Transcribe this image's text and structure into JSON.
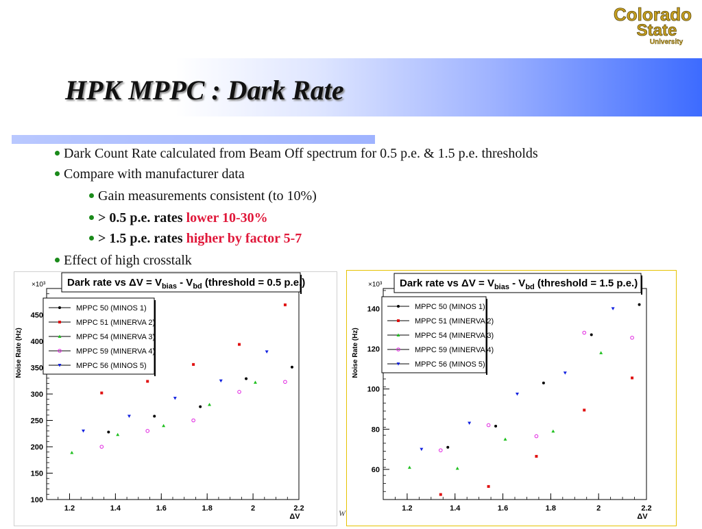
{
  "slide": {
    "title": "HPK MPPC : Dark Rate",
    "logo": {
      "line1": "Colorado",
      "line2": "State",
      "line3": "University"
    },
    "bullets": [
      {
        "level": 1,
        "parts": [
          {
            "text": "Dark Count Rate calculated from Beam Off spectrum for 0.5 p.e. & 1.5 p.e. thresholds"
          }
        ]
      },
      {
        "level": 1,
        "parts": [
          {
            "text": "Compare with manufacturer data"
          }
        ]
      },
      {
        "level": 2,
        "parts": [
          {
            "text": "Gain measurements consistent (to 10%)"
          }
        ]
      },
      {
        "level": 2,
        "parts": [
          {
            "text": "> 0.5 p.e. rates ",
            "bold": true
          },
          {
            "text": "lower 10-30%",
            "bold": true,
            "red": true
          }
        ]
      },
      {
        "level": 2,
        "parts": [
          {
            "text": "> 1.5 p.e. rates ",
            "bold": true
          },
          {
            "text": "higher by factor 5-7",
            "bold": true,
            "red": true
          }
        ]
      },
      {
        "level": 1,
        "parts": [
          {
            "text": "Effect of high crosstalk"
          }
        ]
      }
    ],
    "footer_fragment": "W",
    "colors": {
      "bullet_dot": "#1a8a1a",
      "highlight": "#e0183a",
      "title_gradient_end": "#3d6bff"
    }
  },
  "chart_data": [
    {
      "type": "scatter",
      "title_parts": [
        "Dark rate vs ΔV = V",
        "bias",
        " - V",
        "bd",
        " (threshold = 0.5 p.e.)"
      ],
      "xlabel": "ΔV",
      "ylabel": "Noise Rate (Hz)",
      "y_multiplier": "×10³",
      "xlim": [
        1.1,
        2.2
      ],
      "ylim": [
        100,
        500
      ],
      "xticks": [
        1.2,
        1.4,
        1.6,
        1.8,
        2,
        2.2
      ],
      "xtick_labels": [
        "1.2",
        "1.4",
        "1.6",
        "1.8",
        "2",
        "2.2"
      ],
      "yticks": [
        100,
        150,
        200,
        250,
        300,
        350,
        400,
        450
      ],
      "ytick_labels": [
        "100",
        "150",
        "200",
        "250",
        "300",
        "350",
        "400",
        "450"
      ],
      "legend_position": "top-left",
      "series": [
        {
          "name": "MPPC 50 (MINOS 1)",
          "color": "#000000",
          "marker": "dot",
          "x": [
            1.37,
            1.57,
            1.77,
            1.97,
            2.17
          ],
          "y": [
            228,
            258,
            276,
            329,
            351
          ]
        },
        {
          "name": "MPPC 51 (MINERVA 2)",
          "color": "#e01010",
          "marker": "square",
          "x": [
            1.34,
            1.54,
            1.74,
            1.94,
            2.14
          ],
          "y": [
            302,
            324,
            356,
            394,
            469
          ]
        },
        {
          "name": "MPPC 54 (MINERVA 3)",
          "color": "#20c020",
          "marker": "triangle-up",
          "x": [
            1.21,
            1.41,
            1.61,
            1.81,
            2.01
          ],
          "y": [
            189,
            223,
            240,
            280,
            322
          ]
        },
        {
          "name": "MPPC 59 (MINERVA 4)",
          "color": "#e020e0",
          "marker": "circle-open",
          "x": [
            1.34,
            1.54,
            1.74,
            1.94,
            2.14
          ],
          "y": [
            200,
            230,
            250,
            304,
            323
          ]
        },
        {
          "name": "MPPC 56 (MINOS 5)",
          "color": "#1020e0",
          "marker": "triangle-down",
          "x": [
            1.26,
            1.46,
            1.66,
            1.86,
            2.06
          ],
          "y": [
            230,
            258,
            292,
            325,
            380
          ]
        }
      ]
    },
    {
      "type": "scatter",
      "title_parts": [
        "Dark rate vs ΔV = V",
        "bias",
        " - V",
        "bd",
        " (threshold = 1.5 p.e.)"
      ],
      "xlabel": "ΔV",
      "ylabel": "Noise Rate (Hz)",
      "y_multiplier": "×10³",
      "xlim": [
        1.1,
        2.2
      ],
      "ylim": [
        45,
        150
      ],
      "xticks": [
        1.2,
        1.4,
        1.6,
        1.8,
        2,
        2.2
      ],
      "xtick_labels": [
        "1.2",
        "1.4",
        "1.6",
        "1.8",
        "2",
        "2.2"
      ],
      "yticks": [
        60,
        80,
        100,
        120,
        140
      ],
      "ytick_labels": [
        "60",
        "80",
        "100",
        "120",
        "140"
      ],
      "legend_position": "top-left",
      "series": [
        {
          "name": "MPPC 50 (MINOS 1)",
          "color": "#000000",
          "marker": "dot",
          "x": [
            1.37,
            1.57,
            1.77,
            1.97,
            2.17
          ],
          "y": [
            71,
            81.5,
            103,
            127,
            142
          ]
        },
        {
          "name": "MPPC 51 (MINERVA 2)",
          "color": "#e01010",
          "marker": "square",
          "x": [
            1.34,
            1.54,
            1.74,
            1.94,
            2.14
          ],
          "y": [
            47.5,
            51.5,
            66.5,
            89.5,
            105.5
          ]
        },
        {
          "name": "MPPC 54 (MINERVA 3)",
          "color": "#20c020",
          "marker": "triangle-up",
          "x": [
            1.21,
            1.41,
            1.61,
            1.81,
            2.01
          ],
          "y": [
            61,
            60.5,
            75,
            79,
            118
          ]
        },
        {
          "name": "MPPC 59 (MINERVA 4)",
          "color": "#e020e0",
          "marker": "circle-open",
          "x": [
            1.34,
            1.54,
            1.74,
            1.94,
            2.14
          ],
          "y": [
            69.5,
            82,
            76.5,
            128,
            125.5
          ]
        },
        {
          "name": "MPPC 56 (MINOS 5)",
          "color": "#1020e0",
          "marker": "triangle-down",
          "x": [
            1.26,
            1.46,
            1.66,
            1.86,
            2.06
          ],
          "y": [
            70,
            83,
            97.5,
            108,
            140
          ]
        }
      ]
    }
  ]
}
